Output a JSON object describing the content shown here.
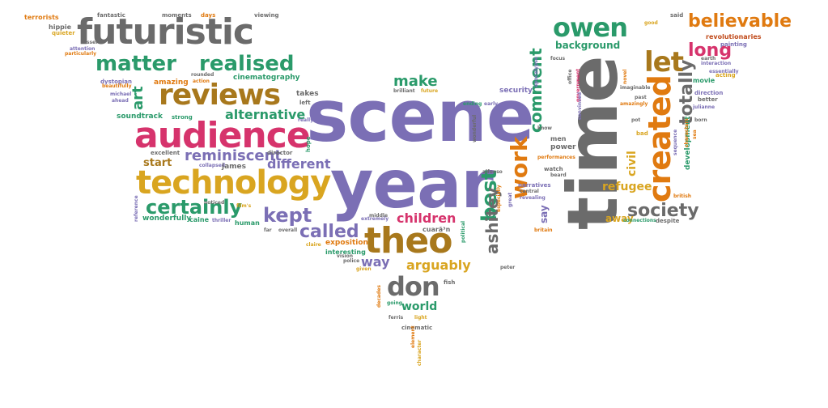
{
  "palette": {
    "purple": "#7b6fb5",
    "gray": "#6b6b6b",
    "brown": "#a8781c",
    "gold": "#d9a520",
    "green": "#2a9a6a",
    "pink": "#d6336c",
    "orange": "#e07a10",
    "red": "#c04a1a"
  },
  "words": [
    {
      "text": "scene",
      "color": "purple",
      "icon": ""
    },
    {
      "text": "year",
      "color": "purple"
    },
    {
      "text": "time",
      "color": "gray"
    },
    {
      "text": "futuristic",
      "color": "gray"
    },
    {
      "text": "audience",
      "color": "pink"
    },
    {
      "text": "technology",
      "color": "gold"
    },
    {
      "text": "reviews",
      "color": "brown"
    },
    {
      "text": "theo",
      "color": "brown"
    },
    {
      "text": "created",
      "color": "orange"
    },
    {
      "text": "owen",
      "color": "green"
    },
    {
      "text": "let",
      "color": "brown"
    },
    {
      "text": "matter",
      "color": "green"
    },
    {
      "text": "realised",
      "color": "green"
    },
    {
      "text": "don",
      "color": "gray"
    },
    {
      "text": "believable",
      "color": "orange"
    },
    {
      "text": "work",
      "color": "orange"
    },
    {
      "text": "certainly",
      "color": "green"
    },
    {
      "text": "reminiscent",
      "color": "purple"
    },
    {
      "text": "kept",
      "color": "purple"
    },
    {
      "text": "called",
      "color": "purple"
    },
    {
      "text": "best",
      "color": "green"
    },
    {
      "text": "ashitey",
      "color": "gray"
    },
    {
      "text": "society",
      "color": "gray"
    },
    {
      "text": "comment",
      "color": "green"
    },
    {
      "text": "totally",
      "color": "gray"
    },
    {
      "text": "long",
      "color": "pink"
    },
    {
      "text": "make",
      "color": "green"
    },
    {
      "text": "art",
      "color": "green"
    },
    {
      "text": "alternative",
      "color": "green"
    },
    {
      "text": "different",
      "color": "purple"
    },
    {
      "text": "children",
      "color": "pink"
    },
    {
      "text": "arguably",
      "color": "gold"
    },
    {
      "text": "way",
      "color": "purple"
    },
    {
      "text": "world",
      "color": "green"
    },
    {
      "text": "refugee",
      "color": "gold"
    },
    {
      "text": "civil",
      "color": "gold"
    },
    {
      "text": "background",
      "color": "green"
    },
    {
      "text": "start",
      "color": "brown"
    },
    {
      "text": "say",
      "color": "purple"
    },
    {
      "text": "away",
      "color": "gold"
    },
    {
      "text": "wonderfully",
      "color": "green"
    },
    {
      "text": "cinematography",
      "color": "green"
    },
    {
      "text": "revolutionaries",
      "color": "red"
    },
    {
      "text": "development",
      "color": "green"
    },
    {
      "text": "exposition",
      "color": "orange"
    },
    {
      "text": "interesting",
      "color": "green"
    },
    {
      "text": "security",
      "color": "purple"
    },
    {
      "text": "soundtrack",
      "color": "green"
    },
    {
      "text": "amazing",
      "color": "orange"
    },
    {
      "text": "terrorists",
      "color": "orange"
    },
    {
      "text": "hippie",
      "color": "gray"
    },
    {
      "text": "quieter",
      "color": "gold"
    },
    {
      "text": "particularly",
      "color": "orange"
    },
    {
      "text": "fantastic",
      "color": "gray"
    },
    {
      "text": "moments",
      "color": "gray"
    },
    {
      "text": "days",
      "color": "orange"
    },
    {
      "text": "viewing",
      "color": "gray"
    },
    {
      "text": "good",
      "color": "gold"
    },
    {
      "text": "said",
      "color": "gray"
    },
    {
      "text": "movie",
      "color": "green"
    },
    {
      "text": "painting",
      "color": "purple"
    },
    {
      "text": "dystopian",
      "color": "purple"
    },
    {
      "text": "beautifully",
      "color": "orange"
    },
    {
      "text": "michael",
      "color": "purple"
    },
    {
      "text": "ahead",
      "color": "purple"
    },
    {
      "text": "rounded",
      "color": "gray"
    },
    {
      "text": "action",
      "color": "orange"
    },
    {
      "text": "strong",
      "color": "green"
    },
    {
      "text": "takes",
      "color": "gray"
    },
    {
      "text": "left",
      "color": "gray"
    },
    {
      "text": "really",
      "color": "purple"
    },
    {
      "text": "excellent",
      "color": "gray"
    },
    {
      "text": "collapsed",
      "color": "purple"
    },
    {
      "text": "james",
      "color": "gray"
    },
    {
      "text": "director",
      "color": "gray"
    },
    {
      "text": "hope",
      "color": "green"
    },
    {
      "text": "caine",
      "color": "green"
    },
    {
      "text": "thriller",
      "color": "purple"
    },
    {
      "text": "human",
      "color": "green"
    },
    {
      "text": "far",
      "color": "gray"
    },
    {
      "text": "overall",
      "color": "gray"
    },
    {
      "text": "claire",
      "color": "gold"
    },
    {
      "text": "police",
      "color": "gray"
    },
    {
      "text": "vision",
      "color": "gray"
    },
    {
      "text": "given",
      "color": "gold"
    },
    {
      "text": "decades",
      "color": "orange"
    },
    {
      "text": "going",
      "color": "green"
    },
    {
      "text": "ferris",
      "color": "gray"
    },
    {
      "text": "light",
      "color": "gold"
    },
    {
      "text": "cinematic",
      "color": "gray"
    },
    {
      "text": "character",
      "color": "gold"
    },
    {
      "text": "element",
      "color": "orange"
    },
    {
      "text": "fish",
      "color": "gray"
    },
    {
      "text": "peter",
      "color": "gray"
    },
    {
      "text": "political",
      "color": "green"
    },
    {
      "text": "middle",
      "color": "gray"
    },
    {
      "text": "extremely",
      "color": "purple"
    },
    {
      "text": "brilliant",
      "color": "gray"
    },
    {
      "text": "future",
      "color": "gold"
    },
    {
      "text": "ending",
      "color": "green"
    },
    {
      "text": "early",
      "color": "purple"
    },
    {
      "text": "wonderful",
      "color": "gray"
    },
    {
      "text": "alfonso",
      "color": "gray"
    },
    {
      "text": "know",
      "color": "gray"
    },
    {
      "text": "men",
      "color": "gray"
    },
    {
      "text": "power",
      "color": "gray"
    },
    {
      "text": "performances",
      "color": "orange"
    },
    {
      "text": "watch",
      "color": "gray"
    },
    {
      "text": "beard",
      "color": "gray"
    },
    {
      "text": "narratives",
      "color": "purple"
    },
    {
      "text": "central",
      "color": "gray"
    },
    {
      "text": "revealing",
      "color": "purple"
    },
    {
      "text": "britain",
      "color": "orange"
    },
    {
      "text": "especially",
      "color": "orange"
    },
    {
      "text": "great",
      "color": "purple"
    },
    {
      "text": "apocalypse",
      "color": "purple"
    },
    {
      "text": "focus",
      "color": "gray"
    },
    {
      "text": "office",
      "color": "gray"
    },
    {
      "text": "government",
      "color": "pink"
    },
    {
      "text": "convinced",
      "color": "purple"
    },
    {
      "text": "novel",
      "color": "orange"
    },
    {
      "text": "imaginable",
      "color": "gray"
    },
    {
      "text": "past",
      "color": "gray"
    },
    {
      "text": "amazingly",
      "color": "orange"
    },
    {
      "text": "pot",
      "color": "gray"
    },
    {
      "text": "bad",
      "color": "gold"
    },
    {
      "text": "born",
      "color": "gray"
    },
    {
      "text": "julianne",
      "color": "purple"
    },
    {
      "text": "direction",
      "color": "purple"
    },
    {
      "text": "better",
      "color": "gray"
    },
    {
      "text": "acting",
      "color": "gold"
    },
    {
      "text": "interaction",
      "color": "purple"
    },
    {
      "text": "earth",
      "color": "gray"
    },
    {
      "text": "essentially",
      "color": "purple"
    },
    {
      "text": "characters",
      "color": "orange"
    },
    {
      "text": "sequence",
      "color": "purple"
    },
    {
      "text": "sea",
      "color": "orange"
    },
    {
      "text": "british",
      "color": "orange"
    },
    {
      "text": "despite",
      "color": "gray"
    },
    {
      "text": "connections",
      "color": "green"
    },
    {
      "text": "cuarã³n",
      "color": "gray"
    },
    {
      "text": "reference",
      "color": "purple"
    },
    {
      "text": "noticed",
      "color": "gray"
    },
    {
      "text": "film's",
      "color": "gold"
    },
    {
      "text": "tosser",
      "color": "gray"
    },
    {
      "text": "attention",
      "color": "purple"
    },
    {
      "text": "world",
      "color": "green"
    }
  ]
}
